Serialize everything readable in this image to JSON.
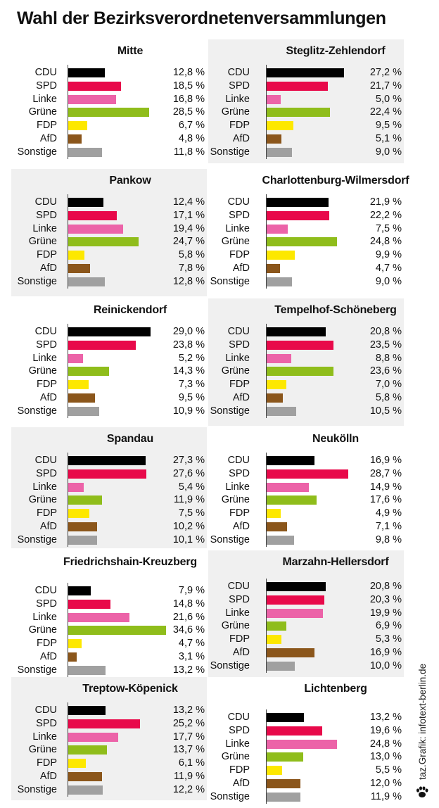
{
  "title": "Wahl der Bezirksverordnetenversammlungen",
  "credit": "taz.Grafik: infotext-berlin.de",
  "colors": {
    "CDU": "#000000",
    "SPD": "#e8094a",
    "Linke": "#ec63a8",
    "Grüne": "#8fbd1b",
    "FDP": "#fde800",
    "AfD": "#8b561b",
    "Sonstige": "#a0a0a0",
    "panel_shade": "#f0f0f0"
  },
  "chart_data": [
    {
      "type": "bar",
      "title": "Mitte",
      "categories": [
        "CDU",
        "SPD",
        "Linke",
        "Grüne",
        "FDP",
        "AfD",
        "Sonstige"
      ],
      "values": [
        12.8,
        18.5,
        16.8,
        28.5,
        6.7,
        4.8,
        11.8
      ],
      "value_labels": [
        "12,8 %",
        "18,5 %",
        "16,8 %",
        "28,5 %",
        "6,7 %",
        "4,8 %",
        "11,8 %"
      ],
      "unit": "%"
    },
    {
      "type": "bar",
      "title": "Steglitz-Zehlendorf",
      "categories": [
        "CDU",
        "SPD",
        "Linke",
        "Grüne",
        "FDP",
        "AfD",
        "Sonstige"
      ],
      "values": [
        27.2,
        21.7,
        5.0,
        22.4,
        9.5,
        5.1,
        9.0
      ],
      "value_labels": [
        "27,2 %",
        "21,7 %",
        "5,0 %",
        "22,4 %",
        "9,5 %",
        "5,1 %",
        "9,0 %"
      ],
      "unit": "%"
    },
    {
      "type": "bar",
      "title": "Pankow",
      "categories": [
        "CDU",
        "SPD",
        "Linke",
        "Grüne",
        "FDP",
        "AfD",
        "Sonstige"
      ],
      "values": [
        12.4,
        17.1,
        19.4,
        24.7,
        5.8,
        7.8,
        12.8
      ],
      "value_labels": [
        "12,4 %",
        "17,1 %",
        "19,4 %",
        "24,7 %",
        "5,8 %",
        "7,8 %",
        "12,8 %"
      ],
      "unit": "%"
    },
    {
      "type": "bar",
      "title": "Charlottenburg-Wilmersdorf",
      "categories": [
        "CDU",
        "SPD",
        "Linke",
        "Grüne",
        "FDP",
        "AfD",
        "Sonstige"
      ],
      "values": [
        21.9,
        22.2,
        7.5,
        24.8,
        9.9,
        4.7,
        9.0
      ],
      "value_labels": [
        "21,9 %",
        "22,2 %",
        "7,5 %",
        "24,8 %",
        "9,9 %",
        "4,7 %",
        "9,0 %"
      ],
      "unit": "%"
    },
    {
      "type": "bar",
      "title": "Reinickendorf",
      "categories": [
        "CDU",
        "SPD",
        "Linke",
        "Grüne",
        "FDP",
        "AfD",
        "Sonstige"
      ],
      "values": [
        29.0,
        23.8,
        5.2,
        14.3,
        7.3,
        9.5,
        10.9
      ],
      "value_labels": [
        "29,0 %",
        "23,8 %",
        "5,2 %",
        "14,3 %",
        "7,3 %",
        "9,5 %",
        "10,9 %"
      ],
      "unit": "%"
    },
    {
      "type": "bar",
      "title": "Tempelhof-Schöneberg",
      "categories": [
        "CDU",
        "SPD",
        "Linke",
        "Grüne",
        "FDP",
        "AfD",
        "Sonstige"
      ],
      "values": [
        20.8,
        23.5,
        8.8,
        23.6,
        7.0,
        5.8,
        10.5
      ],
      "value_labels": [
        "20,8 %",
        "23,5 %",
        "8,8 %",
        "23,6 %",
        "7,0 %",
        "5,8 %",
        "10,5 %"
      ],
      "unit": "%"
    },
    {
      "type": "bar",
      "title": "Spandau",
      "categories": [
        "CDU",
        "SPD",
        "Linke",
        "Grüne",
        "FDP",
        "AfD",
        "Sonstige"
      ],
      "values": [
        27.3,
        27.6,
        5.4,
        11.9,
        7.5,
        10.2,
        10.1
      ],
      "value_labels": [
        "27,3 %",
        "27,6 %",
        "5,4 %",
        "11,9 %",
        "7,5 %",
        "10,2 %",
        "10,1 %"
      ],
      "unit": "%"
    },
    {
      "type": "bar",
      "title": "Neukölln",
      "categories": [
        "CDU",
        "SPD",
        "Linke",
        "Grüne",
        "FDP",
        "AfD",
        "Sonstige"
      ],
      "values": [
        16.9,
        28.7,
        14.9,
        17.6,
        4.9,
        7.1,
        9.8
      ],
      "value_labels": [
        "16,9 %",
        "28,7 %",
        "14,9 %",
        "17,6 %",
        "4,9 %",
        "7,1 %",
        "9,8 %"
      ],
      "unit": "%"
    },
    {
      "type": "bar",
      "title": "Friedrichshain-Kreuzberg",
      "categories": [
        "CDU",
        "SPD",
        "Linke",
        "Grüne",
        "FDP",
        "AfD",
        "Sonstige"
      ],
      "values": [
        7.9,
        14.8,
        21.6,
        34.6,
        4.7,
        3.1,
        13.2
      ],
      "value_labels": [
        "7,9 %",
        "14,8 %",
        "21,6 %",
        "34,6 %",
        "4,7 %",
        "3,1 %",
        "13,2 %"
      ],
      "unit": "%"
    },
    {
      "type": "bar",
      "title": "Marzahn-Hellersdorf",
      "categories": [
        "CDU",
        "SPD",
        "Linke",
        "Grüne",
        "FDP",
        "AfD",
        "Sonstige"
      ],
      "values": [
        20.8,
        20.3,
        19.9,
        6.9,
        5.3,
        16.9,
        10.0
      ],
      "value_labels": [
        "20,8 %",
        "20,3 %",
        "19,9 %",
        "6,9 %",
        "5,3 %",
        "16,9 %",
        "10,0 %"
      ],
      "unit": "%"
    },
    {
      "type": "bar",
      "title": "Treptow-Köpenick",
      "categories": [
        "CDU",
        "SPD",
        "Linke",
        "Grüne",
        "FDP",
        "AfD",
        "Sonstige"
      ],
      "values": [
        13.2,
        25.2,
        17.7,
        13.7,
        6.1,
        11.9,
        12.2
      ],
      "value_labels": [
        "13,2 %",
        "25,2 %",
        "17,7 %",
        "13,7 %",
        "6,1 %",
        "11,9 %",
        "12,2 %"
      ],
      "unit": "%"
    },
    {
      "type": "bar",
      "title": "Lichtenberg",
      "categories": [
        "CDU",
        "SPD",
        "Linke",
        "Grüne",
        "FDP",
        "AfD",
        "Sonstige"
      ],
      "values": [
        13.2,
        19.6,
        24.8,
        13.0,
        5.5,
        12.0,
        11.9
      ],
      "value_labels": [
        "13,2 %",
        "19,6 %",
        "24,8 %",
        "13,0 %",
        "5,5 %",
        "12,0 %",
        "11,9 %"
      ],
      "unit": "%"
    }
  ]
}
